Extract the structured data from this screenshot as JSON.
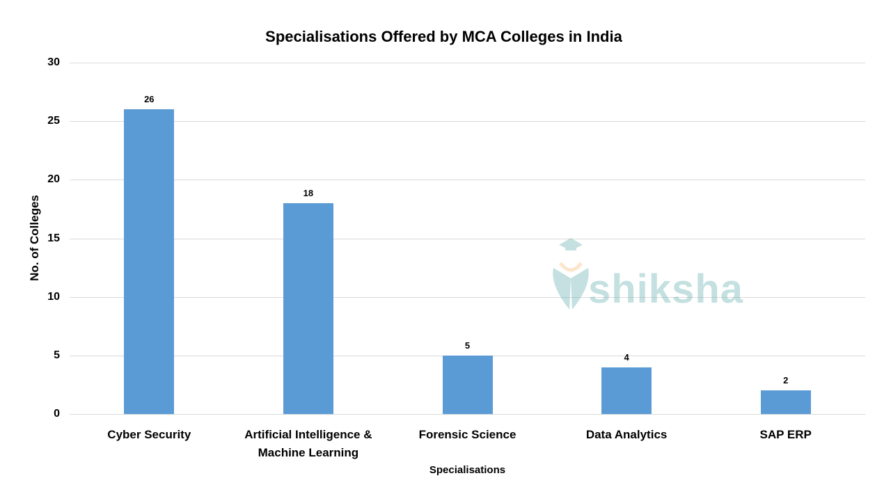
{
  "chart_data": {
    "type": "bar",
    "title": "Specialisations Offered by MCA Colleges in India",
    "xlabel": "Specialisations",
    "ylabel": "No. of Colleges",
    "categories": [
      "Cyber Security",
      "Artificial Intelligence & Machine Learning",
      "Forensic Science",
      "Data Analytics",
      "SAP ERP"
    ],
    "category_lines": [
      [
        "Cyber Security"
      ],
      [
        "Artificial Intelligence &",
        "Machine Learning"
      ],
      [
        "Forensic Science"
      ],
      [
        "Data Analytics"
      ],
      [
        "SAP ERP"
      ]
    ],
    "values": [
      26,
      18,
      5,
      4,
      2
    ],
    "data_labels": [
      "26",
      "18",
      "5",
      "4",
      "2"
    ],
    "ylim": [
      0,
      30
    ],
    "yticks": [
      "0",
      "5",
      "10",
      "15",
      "20",
      "25",
      "30"
    ],
    "grid": true,
    "legend": null,
    "bar_color": "#5b9bd5",
    "watermark": "shiksha"
  }
}
